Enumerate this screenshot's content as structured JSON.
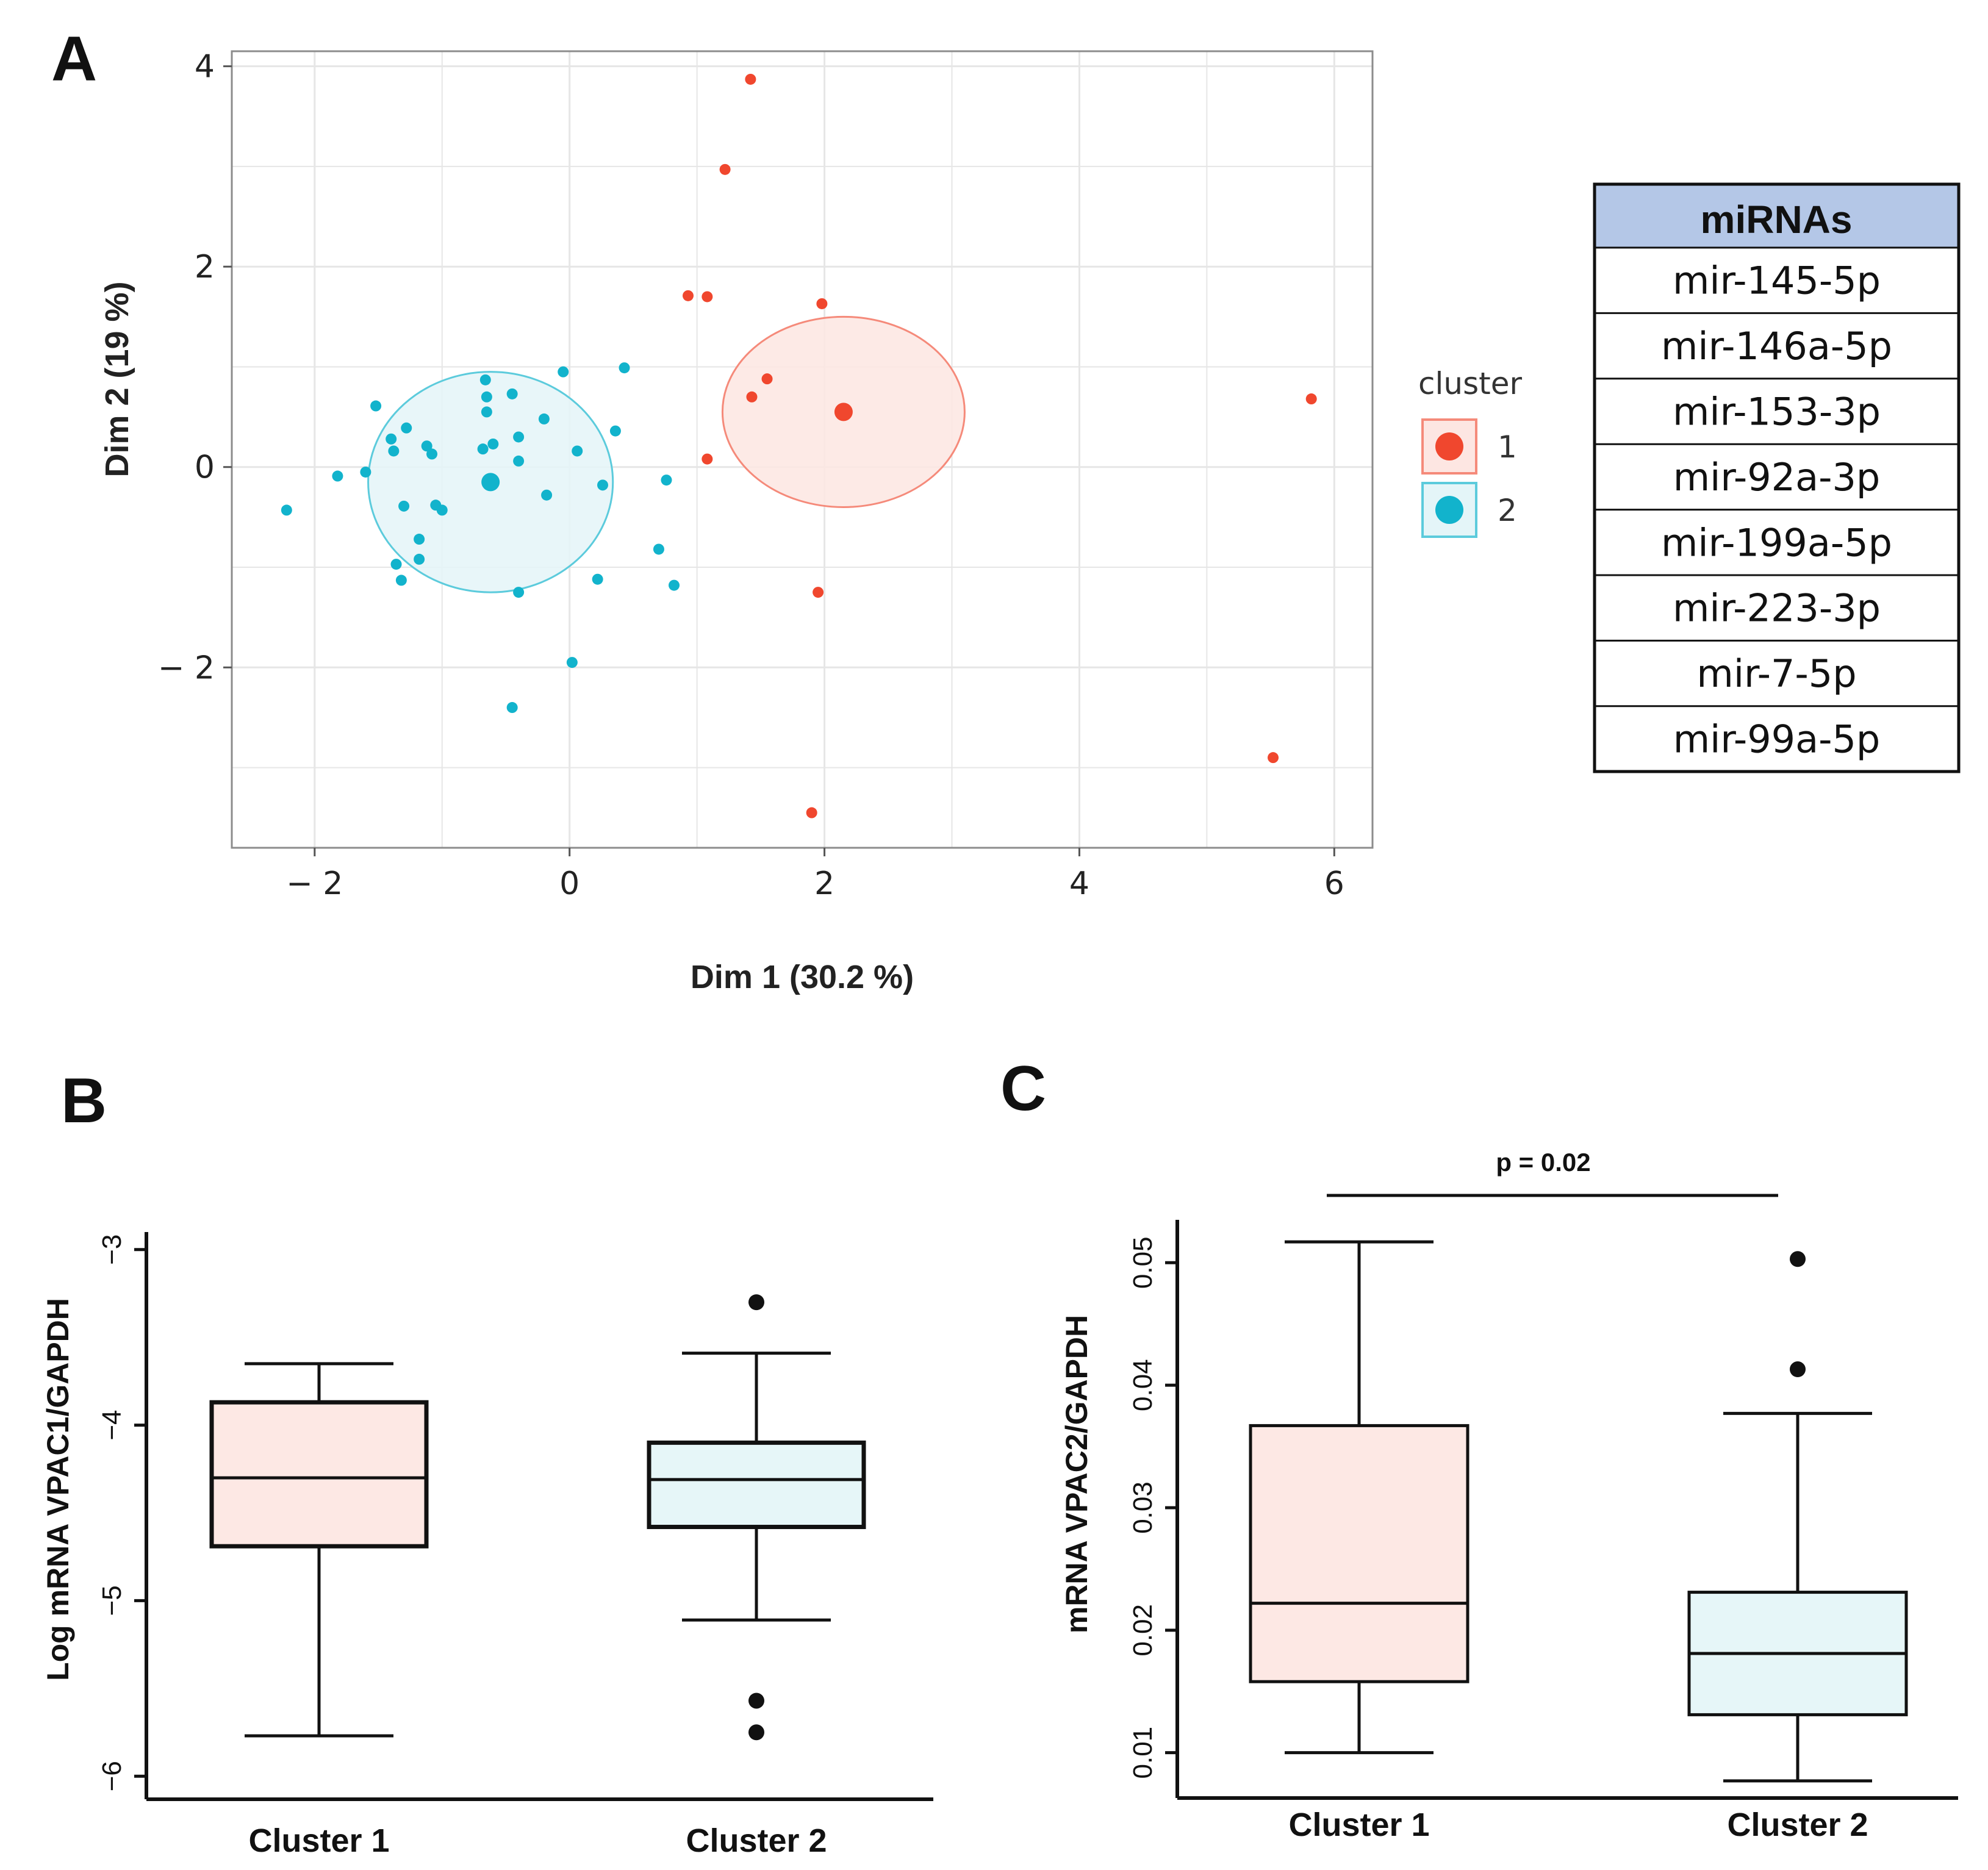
{
  "panel_labels": {
    "a": "A",
    "b": "B",
    "c": "C"
  },
  "colors": {
    "cluster1": "#f0472e",
    "cluster1_fill": "#fde6e2",
    "cluster1_ellipse": "#f58a7a",
    "cluster2": "#12b3cc",
    "cluster2_fill": "#e4f5f8",
    "cluster2_ellipse": "#5ccbdc",
    "box1_fill": "#fde8e4",
    "box2_fill": "#e6f6f8",
    "table_header": "#b4c7e7",
    "grid": "#e6e6e6"
  },
  "mirna_table": {
    "header": "miRNAs",
    "rows": [
      "mir-145-5p",
      "mir-146a-5p",
      "mir-153-3p",
      "mir-92a-3p",
      "mir-199a-5p",
      "mir-223-3p",
      "mir-7-5p",
      "mir-99a-5p"
    ]
  },
  "chart_data": [
    {
      "id": "A",
      "type": "scatter",
      "title": "",
      "xlabel": "Dim 1 (30.2 %)",
      "ylabel": "Dim 2 (19 %)",
      "xlim": [
        -2.65,
        6.3
      ],
      "ylim": [
        -3.8,
        4.15
      ],
      "xticks": [
        -2,
        0,
        2,
        4,
        6
      ],
      "yticks": [
        -2,
        0,
        2,
        4
      ],
      "xtick_labels": [
        "− 2",
        "0",
        "2",
        "4",
        "6"
      ],
      "ytick_labels": [
        "− 2",
        "0",
        "2",
        "4"
      ],
      "grid": true,
      "legend": {
        "title": "cluster",
        "position": "right",
        "items": [
          "1",
          "2"
        ]
      },
      "series": [
        {
          "name": "1",
          "centroid": [
            2.15,
            0.55
          ],
          "ellipse": {
            "cx": 2.15,
            "cy": 0.55,
            "rx": 0.95,
            "ry": 0.95
          },
          "points": [
            [
              1.42,
              3.87
            ],
            [
              1.22,
              2.97
            ],
            [
              0.93,
              1.71
            ],
            [
              1.08,
              1.7
            ],
            [
              1.98,
              1.63
            ],
            [
              1.55,
              0.88
            ],
            [
              1.43,
              0.7
            ],
            [
              1.08,
              0.08
            ],
            [
              5.82,
              0.68
            ],
            [
              1.95,
              -1.25
            ],
            [
              5.52,
              -2.9
            ],
            [
              1.9,
              -3.45
            ]
          ]
        },
        {
          "name": "2",
          "centroid": [
            -0.62,
            -0.15
          ],
          "ellipse": {
            "cx": -0.62,
            "cy": -0.15,
            "rx": 0.96,
            "ry": 1.1
          },
          "points": [
            [
              -2.22,
              -0.43
            ],
            [
              -1.82,
              -0.09
            ],
            [
              -1.6,
              -0.05
            ],
            [
              -1.52,
              0.61
            ],
            [
              -1.4,
              0.28
            ],
            [
              -1.38,
              0.16
            ],
            [
              -1.28,
              0.39
            ],
            [
              -1.3,
              -0.39
            ],
            [
              -1.36,
              -0.97
            ],
            [
              -1.32,
              -1.13
            ],
            [
              -1.18,
              -0.72
            ],
            [
              -1.18,
              -0.92
            ],
            [
              -1.12,
              0.21
            ],
            [
              -1.08,
              0.13
            ],
            [
              -1.05,
              -0.38
            ],
            [
              -1.0,
              -0.43
            ],
            [
              -0.66,
              0.87
            ],
            [
              -0.65,
              0.55
            ],
            [
              -0.65,
              0.7
            ],
            [
              -0.68,
              0.18
            ],
            [
              -0.6,
              0.23
            ],
            [
              -0.45,
              0.73
            ],
            [
              -0.4,
              0.3
            ],
            [
              -0.4,
              0.06
            ],
            [
              -0.4,
              -1.25
            ],
            [
              -0.45,
              -2.4
            ],
            [
              -0.2,
              0.48
            ],
            [
              -0.18,
              -0.28
            ],
            [
              -0.05,
              0.95
            ],
            [
              0.06,
              0.16
            ],
            [
              0.02,
              -1.95
            ],
            [
              0.22,
              -1.12
            ],
            [
              0.26,
              -0.18
            ],
            [
              0.36,
              0.36
            ],
            [
              0.43,
              0.99
            ],
            [
              0.7,
              -0.82
            ],
            [
              0.76,
              -0.13
            ],
            [
              0.82,
              -1.18
            ]
          ]
        }
      ]
    },
    {
      "id": "B",
      "type": "box",
      "title": "",
      "xlabel": "",
      "ylabel": "Log mRNA VPAC1/GAPDH",
      "ylim": [
        -6.1,
        -2.9
      ],
      "yticks": [
        -6,
        -5,
        -4,
        -3
      ],
      "ytick_labels": [
        "−6",
        "−5",
        "−4",
        "−3"
      ],
      "categories": [
        "Cluster 1",
        "Cluster 2"
      ],
      "boxes": [
        {
          "name": "Cluster 1",
          "whisker_low": -5.77,
          "q1": -4.69,
          "median": -4.3,
          "q3": -3.87,
          "whisker_high": -3.65,
          "outliers": []
        },
        {
          "name": "Cluster 2",
          "whisker_low": -5.11,
          "q1": -4.58,
          "median": -4.31,
          "q3": -4.1,
          "whisker_high": -3.59,
          "outliers": [
            -3.3,
            -5.57,
            -5.75
          ]
        }
      ]
    },
    {
      "id": "C",
      "type": "box",
      "title": "",
      "xlabel": "",
      "ylabel": "mRNA VPAC2/GAPDH",
      "ylim": [
        0.0063,
        0.0535
      ],
      "yticks": [
        0.01,
        0.02,
        0.03,
        0.04,
        0.05
      ],
      "ytick_labels": [
        "0.01",
        "0.02",
        "0.03",
        "0.04",
        "0.05"
      ],
      "categories": [
        "Cluster 1",
        "Cluster 2"
      ],
      "annotation": "p = 0.02",
      "boxes": [
        {
          "name": "Cluster 1",
          "whisker_low": 0.01,
          "q1": 0.0158,
          "median": 0.0222,
          "q3": 0.0367,
          "whisker_high": 0.0517,
          "outliers": []
        },
        {
          "name": "Cluster 2",
          "whisker_low": 0.0077,
          "q1": 0.0131,
          "median": 0.0181,
          "q3": 0.0231,
          "whisker_high": 0.0377,
          "outliers": [
            0.0503,
            0.0413
          ]
        }
      ]
    }
  ]
}
